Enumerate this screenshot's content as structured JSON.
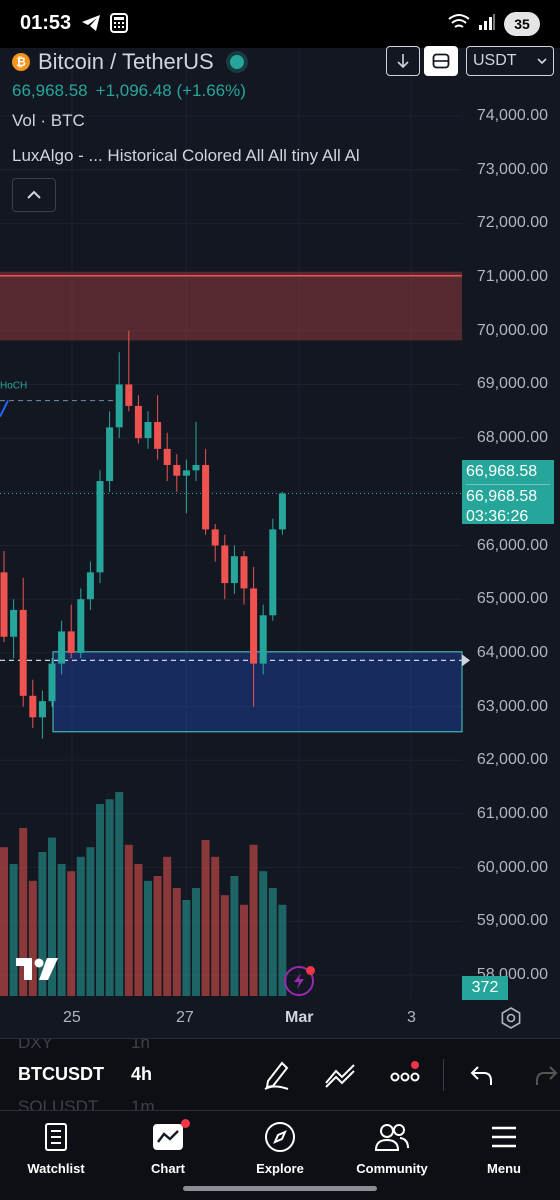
{
  "status_bar": {
    "time": "01:53",
    "battery": "35",
    "left_icons": [
      "telegram-icon",
      "calculator-icon"
    ],
    "right_icons": [
      "wifi-icon",
      "signal-icon"
    ]
  },
  "header": {
    "coin_icon_text": "₿",
    "symbol_title": "Bitcoin / TetherUS",
    "last_price": "66,968.58",
    "change": "+1,096.48 (+1.66%)",
    "volume_label": "Vol · BTC",
    "indicator_label": "LuxAlgo - ...  Historical Colored All All tiny All Al",
    "currency": "USDT",
    "colors": {
      "up": "#26a69a",
      "down": "#ef5350",
      "accent": "#2962ff"
    }
  },
  "price_axis": {
    "labels": [
      "74,000.00",
      "73,000.00",
      "72,000.00",
      "71,000.00",
      "70,000.00",
      "69,000.00",
      "68,000.00",
      "67,000.00",
      "66,000.00",
      "65,000.00",
      "64,000.00",
      "63,000.00",
      "62,000.00",
      "61,000.00",
      "60,000.00",
      "59,000.00",
      "58,000.00"
    ],
    "last_price_box": {
      "price": "66,968.58",
      "price2": "66,968.58",
      "countdown": "03:36:26"
    },
    "volume_value": "372"
  },
  "annotations": {
    "hoch_label": "HoCH"
  },
  "time_axis": {
    "labels": [
      "25",
      "27",
      "Mar",
      "3"
    ]
  },
  "chart_data": {
    "type": "candlestick",
    "ylim": [
      57800,
      74600
    ],
    "zones": [
      {
        "from": 69820,
        "to": 71100,
        "color": "#ef5350"
      },
      {
        "from": 62530,
        "to": 64020,
        "color": "#2962ff"
      }
    ],
    "current_price": 66968.58,
    "dashed_price": 63860,
    "candles": [
      {
        "o": 65500,
        "h": 65900,
        "l": 64200,
        "c": 64300
      },
      {
        "o": 64300,
        "h": 65000,
        "l": 63900,
        "c": 64800
      },
      {
        "o": 64800,
        "h": 65400,
        "l": 63000,
        "c": 63200
      },
      {
        "o": 63200,
        "h": 63500,
        "l": 62600,
        "c": 62800
      },
      {
        "o": 62800,
        "h": 63300,
        "l": 62400,
        "c": 63100
      },
      {
        "o": 63100,
        "h": 63900,
        "l": 63000,
        "c": 63800
      },
      {
        "o": 63800,
        "h": 64600,
        "l": 63600,
        "c": 64400
      },
      {
        "o": 64400,
        "h": 64900,
        "l": 63900,
        "c": 64000
      },
      {
        "o": 64000,
        "h": 65200,
        "l": 63900,
        "c": 65000
      },
      {
        "o": 65000,
        "h": 65700,
        "l": 64800,
        "c": 65500
      },
      {
        "o": 65500,
        "h": 67400,
        "l": 65300,
        "c": 67200
      },
      {
        "o": 67200,
        "h": 68500,
        "l": 67000,
        "c": 68200
      },
      {
        "o": 68200,
        "h": 69600,
        "l": 68000,
        "c": 69000
      },
      {
        "o": 69000,
        "h": 70000,
        "l": 68500,
        "c": 68600
      },
      {
        "o": 68600,
        "h": 68800,
        "l": 67900,
        "c": 68000
      },
      {
        "o": 68000,
        "h": 68500,
        "l": 67800,
        "c": 68300
      },
      {
        "o": 68300,
        "h": 68800,
        "l": 67600,
        "c": 67800
      },
      {
        "o": 67800,
        "h": 68100,
        "l": 67200,
        "c": 67500
      },
      {
        "o": 67500,
        "h": 67700,
        "l": 67000,
        "c": 67300
      },
      {
        "o": 67300,
        "h": 67600,
        "l": 66600,
        "c": 67400
      },
      {
        "o": 67400,
        "h": 68300,
        "l": 67200,
        "c": 67500
      },
      {
        "o": 67500,
        "h": 67800,
        "l": 66200,
        "c": 66300
      },
      {
        "o": 66300,
        "h": 66400,
        "l": 65700,
        "c": 66000
      },
      {
        "o": 66000,
        "h": 66200,
        "l": 65000,
        "c": 65300
      },
      {
        "o": 65300,
        "h": 66000,
        "l": 65100,
        "c": 65800
      },
      {
        "o": 65800,
        "h": 65900,
        "l": 64900,
        "c": 65200
      },
      {
        "o": 65200,
        "h": 65600,
        "l": 63000,
        "c": 63800
      },
      {
        "o": 63800,
        "h": 64900,
        "l": 63600,
        "c": 64700
      },
      {
        "o": 64700,
        "h": 66500,
        "l": 64600,
        "c": 66300
      },
      {
        "o": 66300,
        "h": 67000,
        "l": 66200,
        "c": 66968.58
      }
    ],
    "volumes": [
      0.62,
      0.55,
      0.7,
      0.48,
      0.6,
      0.66,
      0.55,
      0.52,
      0.58,
      0.62,
      0.8,
      0.82,
      0.85,
      0.63,
      0.55,
      0.48,
      0.5,
      0.58,
      0.45,
      0.4,
      0.45,
      0.65,
      0.58,
      0.42,
      0.5,
      0.38,
      0.63,
      0.52,
      0.45,
      0.38
    ]
  },
  "symbol_bar": {
    "ghost_top": "DXY",
    "ghost_top_tf": "1h",
    "symbol": "BTCUSDT",
    "timeframe": "4h",
    "ghost_bottom": "SOLUSDT",
    "ghost_bottom_tf": "1m"
  },
  "bottom_nav": {
    "items": [
      {
        "label": "Watchlist",
        "icon": "watchlist-icon"
      },
      {
        "label": "Chart",
        "icon": "chart-icon"
      },
      {
        "label": "Explore",
        "icon": "compass-icon"
      },
      {
        "label": "Community",
        "icon": "people-icon"
      },
      {
        "label": "Menu",
        "icon": "menu-icon"
      }
    ]
  }
}
